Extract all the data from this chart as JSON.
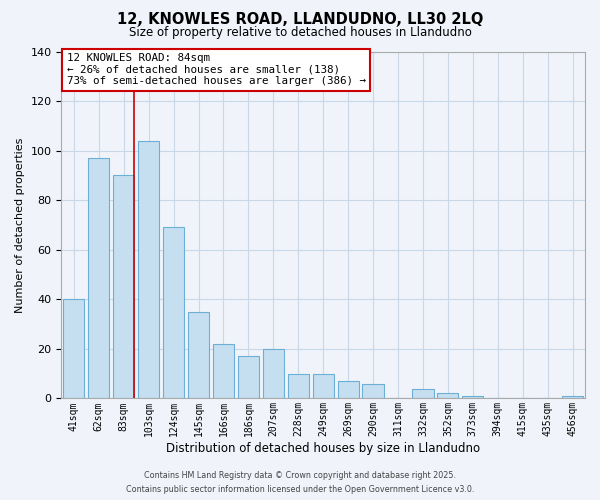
{
  "title": "12, KNOWLES ROAD, LLANDUDNO, LL30 2LQ",
  "subtitle": "Size of property relative to detached houses in Llandudno",
  "xlabel": "Distribution of detached houses by size in Llandudno",
  "ylabel": "Number of detached properties",
  "categories": [
    "41sqm",
    "62sqm",
    "83sqm",
    "103sqm",
    "124sqm",
    "145sqm",
    "166sqm",
    "186sqm",
    "207sqm",
    "228sqm",
    "249sqm",
    "269sqm",
    "290sqm",
    "311sqm",
    "332sqm",
    "352sqm",
    "373sqm",
    "394sqm",
    "415sqm",
    "435sqm",
    "456sqm"
  ],
  "values": [
    40,
    97,
    90,
    104,
    69,
    35,
    22,
    17,
    20,
    10,
    10,
    7,
    6,
    0,
    4,
    2,
    1,
    0,
    0,
    0,
    1
  ],
  "bar_color": "#c5dff0",
  "bar_edge_color": "#6baed6",
  "vline_x_index": 2,
  "vline_color": "#cc0000",
  "ylim": [
    0,
    140
  ],
  "yticks": [
    0,
    20,
    40,
    60,
    80,
    100,
    120,
    140
  ],
  "annotation_title": "12 KNOWLES ROAD: 84sqm",
  "annotation_line1": "← 26% of detached houses are smaller (138)",
  "annotation_line2": "73% of semi-detached houses are larger (386) →",
  "annotation_box_color": "#ffffff",
  "annotation_box_edge": "#cc0000",
  "footer_line1": "Contains HM Land Registry data © Crown copyright and database right 2025.",
  "footer_line2": "Contains public sector information licensed under the Open Government Licence v3.0.",
  "background_color": "#f0f4fa",
  "grid_color": "#c8d8e8"
}
